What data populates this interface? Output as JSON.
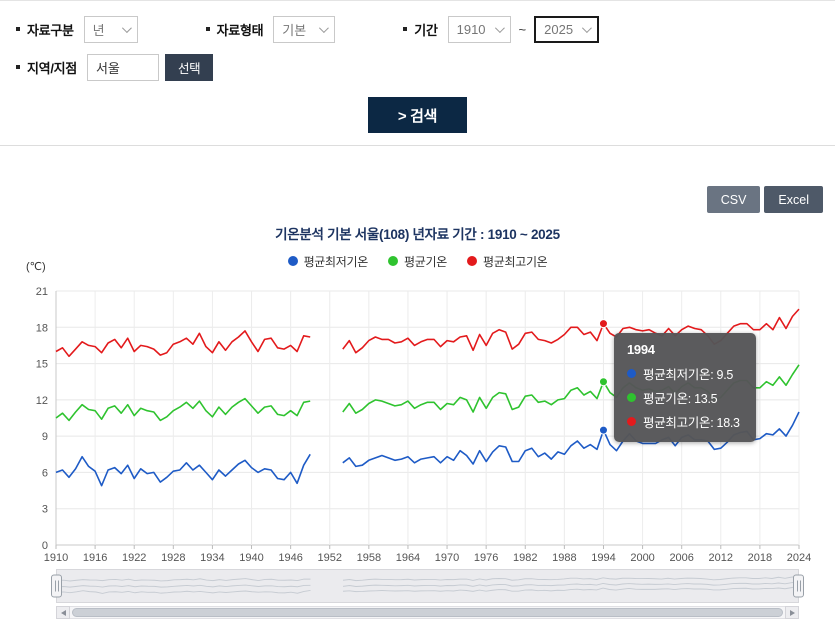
{
  "filters": {
    "data_category": {
      "label": "자료구분",
      "value": "년"
    },
    "data_type": {
      "label": "자료형태",
      "value": "기본"
    },
    "period": {
      "label": "기간",
      "start_value": "1910",
      "end_value": "2025",
      "separator": "~"
    },
    "region": {
      "label": "지역/지점",
      "value": "서울",
      "select_button_label": "선택"
    },
    "search_button_label": "> 검색"
  },
  "export_buttons": {
    "csv_label": "CSV",
    "excel_label": "Excel"
  },
  "chart_data": {
    "type": "line",
    "title": "기온분석 기본 서울(108) 년자료 기간 : 1910 ~ 2025",
    "unit_label": "(℃)",
    "x_start": 1910,
    "x_end": 2024,
    "ylim": [
      0,
      21
    ],
    "yticks": [
      0,
      3,
      6,
      9,
      12,
      15,
      18,
      21
    ],
    "xticks": [
      1910,
      1916,
      1922,
      1928,
      1934,
      1940,
      1946,
      1952,
      1958,
      1964,
      1970,
      1976,
      1982,
      1988,
      1994,
      2000,
      2006,
      2012,
      2018,
      2024
    ],
    "grid": true,
    "legend_position": "top",
    "missing_years": [
      1950,
      1951,
      1952,
      1953
    ],
    "series": [
      {
        "name": "평균최저기온",
        "color": "#1e5bc6",
        "values": [
          6.0,
          6.2,
          5.6,
          6.3,
          7.3,
          6.5,
          6.1,
          4.9,
          6.2,
          6.4,
          5.9,
          6.6,
          5.5,
          6.3,
          5.9,
          6.0,
          5.2,
          5.6,
          6.1,
          6.2,
          6.8,
          6.2,
          6.6,
          6.0,
          5.4,
          6.2,
          5.7,
          6.2,
          6.7,
          7.0,
          6.4,
          6.0,
          6.3,
          6.2,
          5.5,
          5.4,
          6.0,
          5.1,
          6.6,
          7.5,
          null,
          null,
          null,
          null,
          6.8,
          7.2,
          6.5,
          6.6,
          7.0,
          7.2,
          7.4,
          7.2,
          7.0,
          7.1,
          7.3,
          6.8,
          7.1,
          7.2,
          7.3,
          6.8,
          7.3,
          7.0,
          7.8,
          7.4,
          6.7,
          7.8,
          6.9,
          7.7,
          8.2,
          8.1,
          6.9,
          6.9,
          7.8,
          8.0,
          7.3,
          7.6,
          7.1,
          7.7,
          7.5,
          8.2,
          8.6,
          8.0,
          8.3,
          7.9,
          9.5,
          8.3,
          7.8,
          8.6,
          9.2,
          8.6,
          8.4,
          8.4,
          8.4,
          8.7,
          8.9,
          8.2,
          8.9,
          9.1,
          8.7,
          8.7,
          8.6,
          7.9,
          8.0,
          8.5,
          9.1,
          9.3,
          9.4,
          8.7,
          8.8,
          9.2,
          9.1,
          9.6,
          9.0,
          9.9,
          11.0
        ]
      },
      {
        "name": "평균기온",
        "color": "#2fc32f",
        "values": [
          10.5,
          10.9,
          10.3,
          11.0,
          11.6,
          11.2,
          11.1,
          10.4,
          11.3,
          11.5,
          10.9,
          11.6,
          10.7,
          11.3,
          11.1,
          11.0,
          10.3,
          10.6,
          11.1,
          11.4,
          11.8,
          11.3,
          11.9,
          11.1,
          10.6,
          11.4,
          10.8,
          11.4,
          11.8,
          12.1,
          11.5,
          10.9,
          11.4,
          11.5,
          10.8,
          10.7,
          11.1,
          10.7,
          11.8,
          11.9,
          null,
          null,
          null,
          null,
          11.0,
          11.7,
          10.9,
          11.2,
          11.7,
          12.0,
          11.9,
          11.7,
          11.5,
          11.6,
          11.9,
          11.3,
          11.6,
          11.8,
          11.8,
          11.2,
          11.7,
          11.6,
          12.2,
          12.0,
          11.0,
          12.2,
          11.3,
          12.2,
          12.6,
          12.5,
          11.2,
          11.4,
          12.3,
          12.4,
          11.8,
          11.9,
          11.6,
          12.0,
          12.1,
          12.8,
          13.0,
          12.4,
          12.7,
          12.1,
          13.5,
          12.6,
          12.2,
          13.0,
          13.4,
          13.0,
          12.8,
          12.9,
          12.7,
          12.8,
          13.1,
          12.5,
          13.1,
          13.4,
          13.0,
          13.0,
          12.7,
          12.0,
          12.2,
          12.8,
          13.4,
          13.6,
          13.6,
          13.0,
          13.0,
          13.5,
          13.2,
          13.9,
          13.2,
          14.1,
          14.9
        ]
      },
      {
        "name": "평균최고기온",
        "color": "#e31a1c",
        "values": [
          16.0,
          16.3,
          15.6,
          16.2,
          16.8,
          16.5,
          16.4,
          15.9,
          16.7,
          17.0,
          16.3,
          17.1,
          16.0,
          16.5,
          16.4,
          16.2,
          15.7,
          15.9,
          16.6,
          16.8,
          17.1,
          16.6,
          17.5,
          16.4,
          15.9,
          16.8,
          16.1,
          16.8,
          17.2,
          17.7,
          16.8,
          16.0,
          17.0,
          17.1,
          16.3,
          16.2,
          16.5,
          16.0,
          17.3,
          17.2,
          null,
          null,
          null,
          null,
          16.2,
          16.9,
          15.9,
          16.3,
          16.9,
          17.2,
          17.0,
          17.0,
          16.7,
          16.8,
          17.1,
          16.5,
          16.8,
          17.0,
          17.0,
          16.4,
          16.9,
          16.8,
          17.2,
          17.3,
          16.1,
          17.4,
          16.5,
          17.5,
          17.8,
          17.6,
          16.2,
          16.6,
          17.5,
          17.6,
          17.0,
          16.9,
          16.7,
          17.0,
          17.4,
          18.0,
          18.0,
          17.4,
          17.6,
          16.9,
          18.3,
          17.5,
          17.2,
          17.9,
          18.0,
          17.8,
          17.7,
          17.8,
          17.5,
          17.3,
          17.9,
          17.3,
          17.8,
          18.1,
          17.9,
          17.8,
          17.3,
          16.6,
          16.9,
          17.5,
          18.1,
          18.3,
          18.3,
          17.8,
          17.8,
          18.3,
          17.8,
          18.8,
          17.9,
          18.9,
          19.5
        ]
      }
    ],
    "tooltip": {
      "year": "1994",
      "items": [
        {
          "label": "평균최저기온",
          "value": "9.5"
        },
        {
          "label": "평균기온",
          "value": "13.5"
        },
        {
          "label": "평균최고기온",
          "value": "18.3"
        }
      ]
    }
  }
}
